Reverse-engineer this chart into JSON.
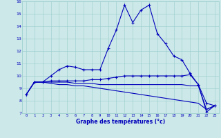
{
  "title": "",
  "xlabel": "Graphe des températures (°c)",
  "xlim": [
    -0.5,
    23.5
  ],
  "ylim": [
    7,
    16
  ],
  "yticks": [
    7,
    8,
    9,
    10,
    11,
    12,
    13,
    14,
    15,
    16
  ],
  "xticks": [
    0,
    1,
    2,
    3,
    4,
    5,
    6,
    7,
    8,
    9,
    10,
    11,
    12,
    13,
    14,
    15,
    16,
    17,
    18,
    19,
    20,
    21,
    22,
    23
  ],
  "bg_color": "#cce8e8",
  "line_color": "#0000bb",
  "grid_color": "#99cccc",
  "series": {
    "main": {
      "x": [
        0,
        1,
        2,
        3,
        4,
        5,
        6,
        7,
        8,
        9,
        10,
        11,
        12,
        13,
        14,
        15,
        16,
        17,
        18,
        19,
        20,
        21,
        22,
        23
      ],
      "y": [
        8.5,
        9.5,
        9.5,
        10.0,
        10.5,
        10.8,
        10.7,
        10.5,
        10.5,
        10.5,
        12.2,
        13.7,
        15.7,
        14.3,
        15.3,
        15.7,
        13.4,
        12.6,
        11.6,
        11.3,
        10.2,
        9.3,
        7.1,
        7.6
      ]
    },
    "flat1": {
      "x": [
        0,
        1,
        2,
        3,
        4,
        5,
        6,
        7,
        8,
        9,
        10,
        11,
        12,
        13,
        14,
        15,
        16,
        17,
        18,
        19,
        20,
        21,
        22,
        23
      ],
      "y": [
        8.5,
        9.5,
        9.5,
        9.6,
        9.6,
        9.6,
        9.6,
        9.6,
        9.7,
        9.7,
        9.8,
        9.9,
        10.0,
        10.0,
        10.0,
        10.0,
        10.0,
        10.0,
        10.0,
        10.0,
        10.1,
        9.3,
        7.8,
        7.6
      ]
    },
    "flat2": {
      "x": [
        0,
        1,
        2,
        3,
        4,
        5,
        6,
        7,
        8,
        9,
        10,
        11,
        12,
        13,
        14,
        15,
        16,
        17,
        18,
        19,
        20,
        21,
        22,
        23
      ],
      "y": [
        8.5,
        9.5,
        9.5,
        9.5,
        9.5,
        9.5,
        9.4,
        9.4,
        9.4,
        9.3,
        9.3,
        9.3,
        9.3,
        9.3,
        9.3,
        9.3,
        9.3,
        9.3,
        9.3,
        9.3,
        9.2,
        9.2,
        7.3,
        7.6
      ]
    },
    "flat3": {
      "x": [
        0,
        1,
        2,
        3,
        4,
        5,
        6,
        7,
        8,
        9,
        10,
        11,
        12,
        13,
        14,
        15,
        16,
        17,
        18,
        19,
        20,
        21,
        22,
        23
      ],
      "y": [
        8.5,
        9.5,
        9.5,
        9.4,
        9.3,
        9.3,
        9.2,
        9.2,
        9.1,
        9.0,
        8.9,
        8.8,
        8.7,
        8.6,
        8.5,
        8.4,
        8.3,
        8.2,
        8.1,
        8.0,
        7.9,
        7.8,
        7.3,
        7.6
      ]
    }
  }
}
